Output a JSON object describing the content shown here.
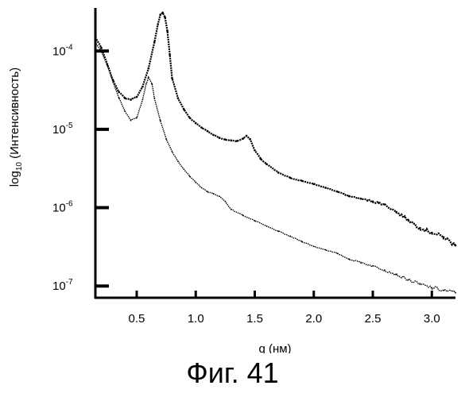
{
  "caption": "Фиг. 41",
  "chart_data": {
    "type": "scatter",
    "title": "",
    "xlabel": "q (нм)",
    "ylabel": "log10 (Интенсивность)",
    "ylabel_parts": {
      "base": "log",
      "sub": "10",
      "rest": " (Интенсивность)"
    },
    "xlim": [
      0.15,
      3.2
    ],
    "ylim_log10": [
      -7.15,
      -3.45
    ],
    "y_scale": "log",
    "grid": false,
    "legend": "none",
    "x_ticks": [
      0.5,
      1.0,
      1.5,
      2.0,
      2.5,
      3.0
    ],
    "x_tick_labels": [
      "0.5",
      "1.0",
      "1.5",
      "2.0",
      "2.5",
      "3.0"
    ],
    "y_ticks": [
      {
        "value": 0.0001,
        "base": "10",
        "exp": "-4"
      },
      {
        "value": 1e-05,
        "base": "10",
        "exp": "-5"
      },
      {
        "value": 1e-06,
        "base": "10",
        "exp": "-6"
      },
      {
        "value": 1e-07,
        "base": "10",
        "exp": "-7"
      }
    ],
    "series": [
      {
        "color": "#000000",
        "x": [
          0.15,
          0.2,
          0.25,
          0.3,
          0.35,
          0.4,
          0.45,
          0.5,
          0.55,
          0.6,
          0.65,
          0.68,
          0.7,
          0.72,
          0.74,
          0.76,
          0.78,
          0.8,
          0.85,
          0.9,
          0.95,
          1.0,
          1.05,
          1.1,
          1.15,
          1.2,
          1.25,
          1.3,
          1.35,
          1.4,
          1.43,
          1.46,
          1.5,
          1.55,
          1.6,
          1.7,
          1.8,
          1.9,
          2.0,
          2.1,
          2.2,
          2.3,
          2.4,
          2.5,
          2.55,
          2.6,
          2.7,
          2.8,
          2.9,
          3.0,
          3.1,
          3.2
        ],
        "y": [
          0.00015,
          0.00011,
          6.8e-05,
          4.2e-05,
          3e-05,
          2.5e-05,
          2.4e-05,
          2.6e-05,
          3.5e-05,
          6e-05,
          0.00013,
          0.00022,
          0.00029,
          0.00031,
          0.00027,
          0.00018,
          9e-05,
          4.5e-05,
          2.5e-05,
          1.8e-05,
          1.4e-05,
          1.2e-05,
          1.05e-05,
          9.5e-06,
          8.5e-06,
          7.8e-06,
          7.4e-06,
          7.2e-06,
          7.1e-06,
          7.6e-06,
          8.3e-06,
          7.5e-06,
          5.4e-06,
          4.2e-06,
          3.6e-06,
          2.8e-06,
          2.4e-06,
          2.2e-06,
          2e-06,
          1.8e-06,
          1.6e-06,
          1.4e-06,
          1.3e-06,
          1.2e-06,
          1.15e-06,
          1.1e-06,
          8.8e-07,
          7e-07,
          5.5e-07,
          4.8e-07,
          4.2e-07,
          3.3e-07
        ]
      },
      {
        "color": "#000000",
        "x": [
          0.15,
          0.2,
          0.25,
          0.3,
          0.35,
          0.4,
          0.45,
          0.5,
          0.55,
          0.58,
          0.6,
          0.63,
          0.65,
          0.7,
          0.75,
          0.8,
          0.85,
          0.9,
          0.95,
          1.0,
          1.05,
          1.1,
          1.15,
          1.2,
          1.25,
          1.3,
          1.4,
          1.5,
          1.6,
          1.7,
          1.8,
          1.9,
          2.0,
          2.1,
          2.2,
          2.3,
          2.4,
          2.5,
          2.6,
          2.7,
          2.8,
          2.9,
          3.0,
          3.1,
          3.2
        ],
        "y": [
          0.00013,
          0.0001,
          6.6e-05,
          4e-05,
          2.5e-05,
          1.7e-05,
          1.3e-05,
          1.4e-05,
          2.4e-05,
          3.8e-05,
          4.6e-05,
          3.8e-05,
          2.5e-05,
          1.3e-05,
          7.5e-06,
          5.2e-06,
          3.9e-06,
          3.1e-06,
          2.5e-06,
          2.1e-06,
          1.8e-06,
          1.6e-06,
          1.5e-06,
          1.4e-06,
          1.2e-06,
          9.5e-07,
          8e-07,
          6.8e-07,
          5.8e-07,
          5e-07,
          4.3e-07,
          3.7e-07,
          3.2e-07,
          2.9e-07,
          2.6e-07,
          2.2e-07,
          2e-07,
          1.8e-07,
          1.6e-07,
          1.4e-07,
          1.2e-07,
          1.05e-07,
          9.5e-08,
          8.8e-08,
          8.2e-08
        ]
      }
    ]
  }
}
